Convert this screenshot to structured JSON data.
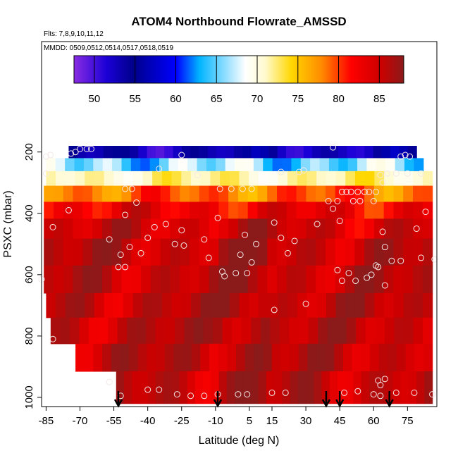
{
  "chart_data": {
    "type": "heatmap",
    "title": "ATOM4 Northbound Flowrate_AMSSD",
    "subtitle_flights": "Flts: 7,8,9,10,11,12",
    "subtitle_dates": "MMDD: 0509,0512,0514,0517,0518,0519",
    "xlabel": "Latitude (deg N)",
    "ylabel": "PSXC (mbar)",
    "xlim": [
      -87,
      88
    ],
    "ylim": [
      1030,
      -160
    ],
    "x_ticks": [
      -85,
      -70,
      -55,
      -40,
      -25,
      -10,
      5,
      15,
      30,
      45,
      60,
      75
    ],
    "x_tick_labels": [
      "-85",
      "-70",
      "-55",
      "-40",
      "-25",
      "-10",
      "5",
      "15",
      "30",
      "45",
      "60",
      "75"
    ],
    "y_ticks": [
      200,
      400,
      600,
      800,
      1000
    ],
    "y_tick_labels": [
      "200",
      "400",
      "600",
      "800",
      "1000"
    ],
    "colorbar": {
      "range": [
        47.5,
        88
      ],
      "ticks": [
        50,
        55,
        60,
        65,
        70,
        75,
        80,
        85
      ],
      "tick_labels": [
        "50",
        "55",
        "60",
        "65",
        "70",
        "75",
        "80",
        "85"
      ],
      "colors": [
        "#8a2be2",
        "#1a00d6",
        "#00008b",
        "#0000ff",
        "#00b4ff",
        "#ffffff",
        "#fffacd",
        "#ffd700",
        "#ff8c00",
        "#ff0000",
        "#cc0000",
        "#8b1a1a"
      ]
    },
    "field_bands": [
      {
        "p": 200,
        "lat_min": -75,
        "lat_max": 79,
        "value": 53
      },
      {
        "p": 240,
        "lat_min": -85,
        "lat_max": 82,
        "value": 64
      },
      {
        "p": 285,
        "lat_min": -85,
        "lat_max": 86,
        "value": 70
      },
      {
        "p": 335,
        "lat_min": -86,
        "lat_max": 86,
        "value": 78
      },
      {
        "p": 390,
        "lat_min": -86,
        "lat_max": 86,
        "value": 82
      },
      {
        "p": 445,
        "lat_min": -86,
        "lat_max": 86,
        "value": 84
      },
      {
        "p": 520,
        "lat_min": -86,
        "lat_max": 86,
        "value": 85
      },
      {
        "p": 620,
        "lat_min": -86,
        "lat_max": 86,
        "value": 85
      },
      {
        "p": 700,
        "lat_min": -85,
        "lat_max": 86,
        "value": 85
      },
      {
        "p": 780,
        "lat_min": -83,
        "lat_max": 86,
        "value": 85
      },
      {
        "p": 870,
        "lat_min": -72,
        "lat_max": 86,
        "value": 85
      },
      {
        "p": 960,
        "lat_min": -54,
        "lat_max": 86,
        "value": 85
      }
    ],
    "observations": [
      {
        "lat": -85,
        "p": 215
      },
      {
        "lat": -83,
        "p": 210
      },
      {
        "lat": -74,
        "p": 205
      },
      {
        "lat": -72,
        "p": 200
      },
      {
        "lat": -70,
        "p": 190
      },
      {
        "lat": -67,
        "p": 190
      },
      {
        "lat": -65,
        "p": 190
      },
      {
        "lat": -35,
        "p": 255
      },
      {
        "lat": -25,
        "p": 210
      },
      {
        "lat": -18,
        "p": 275
      },
      {
        "lat": -8,
        "p": 320
      },
      {
        "lat": -3,
        "p": 320
      },
      {
        "lat": 2,
        "p": 320
      },
      {
        "lat": 6,
        "p": 320
      },
      {
        "lat": 19,
        "p": 265
      },
      {
        "lat": 27,
        "p": 265
      },
      {
        "lat": 29,
        "p": 260
      },
      {
        "lat": 42,
        "p": 185
      },
      {
        "lat": -85,
        "p": 270
      },
      {
        "lat": -50,
        "p": 320
      },
      {
        "lat": -47,
        "p": 320
      },
      {
        "lat": -45,
        "p": 365
      },
      {
        "lat": -75,
        "p": 390
      },
      {
        "lat": -82,
        "p": 445
      },
      {
        "lat": -50,
        "p": 405
      },
      {
        "lat": -37,
        "p": 445
      },
      {
        "lat": -32,
        "p": 435
      },
      {
        "lat": -25,
        "p": 455
      },
      {
        "lat": -9,
        "p": 415
      },
      {
        "lat": 16,
        "p": 430
      },
      {
        "lat": 35,
        "p": 435
      },
      {
        "lat": 40,
        "p": 360
      },
      {
        "lat": 44,
        "p": 360
      },
      {
        "lat": 46,
        "p": 330
      },
      {
        "lat": 48,
        "p": 330
      },
      {
        "lat": 50,
        "p": 330
      },
      {
        "lat": 53,
        "p": 330
      },
      {
        "lat": 56,
        "p": 330
      },
      {
        "lat": 58,
        "p": 330
      },
      {
        "lat": 61,
        "p": 330
      },
      {
        "lat": 64,
        "p": 300
      },
      {
        "lat": 63,
        "p": 275
      },
      {
        "lat": 66,
        "p": 270
      },
      {
        "lat": 70,
        "p": 270
      },
      {
        "lat": 75,
        "p": 270
      },
      {
        "lat": 81,
        "p": 270
      },
      {
        "lat": 72,
        "p": 215
      },
      {
        "lat": 74,
        "p": 210
      },
      {
        "lat": 76,
        "p": 215
      },
      {
        "lat": 42,
        "p": 385
      },
      {
        "lat": 51,
        "p": 360
      },
      {
        "lat": 54,
        "p": 360
      },
      {
        "lat": 60,
        "p": 360
      },
      {
        "lat": 45,
        "p": 425
      },
      {
        "lat": 83,
        "p": 395
      },
      {
        "lat": 64,
        "p": 460
      },
      {
        "lat": 79,
        "p": 450
      },
      {
        "lat": -57,
        "p": 485
      },
      {
        "lat": -40,
        "p": 480
      },
      {
        "lat": -28,
        "p": 500
      },
      {
        "lat": -24,
        "p": 505
      },
      {
        "lat": -15,
        "p": 485
      },
      {
        "lat": 3,
        "p": 470
      },
      {
        "lat": 8,
        "p": 500
      },
      {
        "lat": 19,
        "p": 480
      },
      {
        "lat": 25,
        "p": 490
      },
      {
        "lat": 22,
        "p": 530
      },
      {
        "lat": -48,
        "p": 510
      },
      {
        "lat": -52,
        "p": 535
      },
      {
        "lat": -43,
        "p": 530
      },
      {
        "lat": 1,
        "p": 535
      },
      {
        "lat": -13,
        "p": 545
      },
      {
        "lat": 6,
        "p": 560
      },
      {
        "lat": 65,
        "p": 510
      },
      {
        "lat": 68,
        "p": 555
      },
      {
        "lat": 72,
        "p": 555
      },
      {
        "lat": 81,
        "p": 545
      },
      {
        "lat": 87,
        "p": 550
      },
      {
        "lat": -53,
        "p": 575
      },
      {
        "lat": -50,
        "p": 575
      },
      {
        "lat": 61,
        "p": 570
      },
      {
        "lat": 62,
        "p": 575
      },
      {
        "lat": 44,
        "p": 585
      },
      {
        "lat": 49,
        "p": 595
      },
      {
        "lat": -7,
        "p": 590
      },
      {
        "lat": -6,
        "p": 605
      },
      {
        "lat": -1,
        "p": 595
      },
      {
        "lat": 4,
        "p": 595
      },
      {
        "lat": 46,
        "p": 620
      },
      {
        "lat": 52,
        "p": 620
      },
      {
        "lat": 57,
        "p": 610
      },
      {
        "lat": 59,
        "p": 600
      },
      {
        "lat": -87,
        "p": 615
      },
      {
        "lat": 65,
        "p": 635
      },
      {
        "lat": 30,
        "p": 695
      },
      {
        "lat": 16,
        "p": 715
      },
      {
        "lat": -82,
        "p": 810
      },
      {
        "lat": -57,
        "p": 950
      },
      {
        "lat": 62,
        "p": 945
      },
      {
        "lat": 63,
        "p": 960
      },
      {
        "lat": 65,
        "p": 940
      },
      {
        "lat": -52,
        "p": 995
      },
      {
        "lat": -40,
        "p": 975
      },
      {
        "lat": -35,
        "p": 975
      },
      {
        "lat": -27,
        "p": 990
      },
      {
        "lat": -21,
        "p": 995
      },
      {
        "lat": -15,
        "p": 995
      },
      {
        "lat": -9,
        "p": 990
      },
      {
        "lat": 0,
        "p": 990
      },
      {
        "lat": 4,
        "p": 990
      },
      {
        "lat": 15,
        "p": 985
      },
      {
        "lat": 21,
        "p": 985
      },
      {
        "lat": 47,
        "p": 985
      },
      {
        "lat": 53,
        "p": 980
      },
      {
        "lat": 60,
        "p": 990
      },
      {
        "lat": 63,
        "p": 995
      },
      {
        "lat": 70,
        "p": 985
      },
      {
        "lat": 78,
        "p": 985
      },
      {
        "lat": 86,
        "p": 990
      }
    ],
    "arrows_lat": [
      -53,
      -9,
      39,
      45,
      67
    ]
  }
}
